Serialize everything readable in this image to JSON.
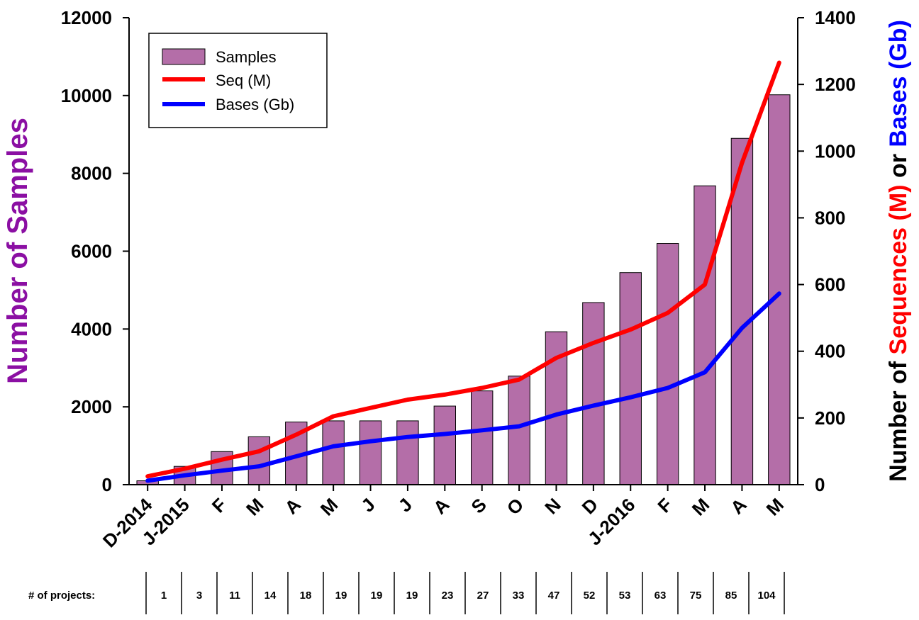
{
  "chart_data": {
    "type": "bar",
    "categories": [
      "D-2014",
      "J-2015",
      "F",
      "M",
      "A",
      "M",
      "J",
      "J",
      "A",
      "S",
      "O",
      "N",
      "D",
      "J-2016",
      "F",
      "M",
      "A",
      "M"
    ],
    "series": [
      {
        "name": "Samples",
        "axis": "left",
        "kind": "bar",
        "values": [
          100,
          470,
          850,
          1230,
          1610,
          1640,
          1640,
          1640,
          2020,
          2410,
          2790,
          3930,
          4680,
          5450,
          6200,
          7680,
          8900,
          10020
        ]
      },
      {
        "name": "Seq (M)",
        "axis": "right",
        "kind": "line",
        "values": [
          25,
          48,
          75,
          100,
          150,
          205,
          230,
          255,
          270,
          290,
          315,
          380,
          425,
          465,
          515,
          600,
          965,
          1265
        ]
      },
      {
        "name": "Bases (Gb)",
        "axis": "right",
        "kind": "line",
        "values": [
          12,
          28,
          42,
          55,
          85,
          115,
          130,
          143,
          152,
          163,
          175,
          210,
          237,
          262,
          290,
          337,
          470,
          573
        ]
      }
    ],
    "colors": {
      "Samples": "#b46ea8",
      "Samples_edge": "#000000",
      "Seq (M)": "#ff0000",
      "Bases (Gb)": "#0000ff",
      "left_title": "#8b0fa3"
    },
    "ylim_left": [
      0,
      12000
    ],
    "yticks_left": [
      "0",
      "2000",
      "4000",
      "6000",
      "8000",
      "10000",
      "12000"
    ],
    "ylim_right": [
      0,
      1400
    ],
    "yticks_right": [
      "0",
      "200",
      "400",
      "600",
      "800",
      "1000",
      "1200",
      "1400"
    ],
    "ylabel_left": "Number of Samples",
    "ylabel_right_parts": [
      {
        "text": "Number of ",
        "color": "#000000"
      },
      {
        "text": "Sequences (M)",
        "color": "#ff0000"
      },
      {
        "text": " or ",
        "color": "#000000"
      },
      {
        "text": "Bases (Gb)",
        "color": "#0000ff"
      }
    ],
    "legend": {
      "position": "top-left",
      "entries": [
        "Samples",
        "Seq (M)",
        "Bases (Gb)"
      ]
    },
    "grid": false,
    "projects_label": "# of projects:",
    "projects": [
      "1",
      "3",
      "11",
      "14",
      "18",
      "19",
      "19",
      "19",
      "23",
      "27",
      "33",
      "47",
      "52",
      "53",
      "63",
      "75",
      "85",
      "104"
    ]
  }
}
